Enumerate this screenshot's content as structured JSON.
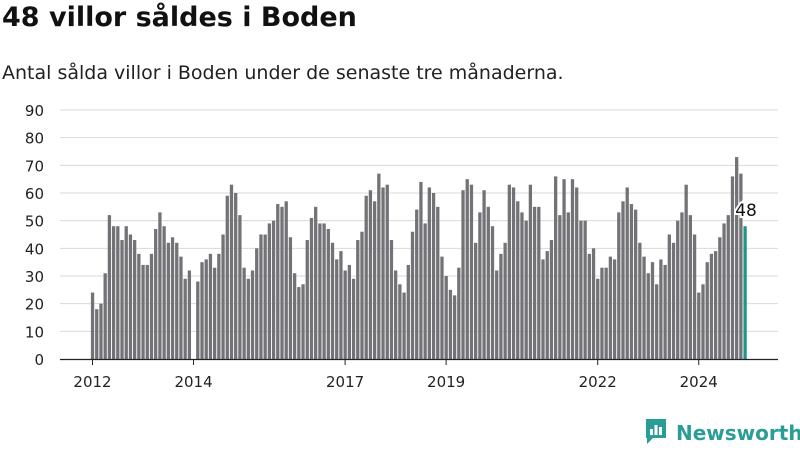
{
  "title": "48 villor såldes i Boden",
  "subtitle": "Antal sålda villor i Boden under de senaste tre månaderna.",
  "brand": {
    "name": "Newsworthy",
    "icon": "newsworthy-logo-icon"
  },
  "colors": {
    "bar": "#737277",
    "highlight": "#1e958d",
    "grid": "#d9d9d9",
    "axis": "#222222",
    "brand": "#2a9d97"
  },
  "chart_data": {
    "type": "bar",
    "xlabel": "",
    "ylabel": "",
    "ylim": [
      0,
      90
    ],
    "yticks": [
      0,
      10,
      20,
      30,
      40,
      50,
      60,
      70,
      80,
      90
    ],
    "grid": true,
    "x_ticks": [
      {
        "label": "2012",
        "index": 0
      },
      {
        "label": "2014",
        "index": 24
      },
      {
        "label": "2017",
        "index": 60
      },
      {
        "label": "2019",
        "index": 84
      },
      {
        "label": "2022",
        "index": 120
      },
      {
        "label": "2024",
        "index": 144
      }
    ],
    "start_label": "2012",
    "highlight_label": "48",
    "values": [
      24,
      18,
      20,
      31,
      52,
      48,
      48,
      43,
      48,
      45,
      43,
      38,
      34,
      34,
      38,
      47,
      53,
      48,
      42,
      44,
      42,
      37,
      29,
      32,
      null,
      28,
      35,
      36,
      38,
      33,
      38,
      45,
      59,
      63,
      60,
      52,
      33,
      29,
      32,
      40,
      45,
      45,
      49,
      50,
      56,
      55,
      57,
      44,
      31,
      26,
      27,
      43,
      51,
      55,
      49,
      49,
      47,
      42,
      36,
      39,
      32,
      34,
      29,
      43,
      46,
      59,
      61,
      57,
      67,
      62,
      63,
      43,
      32,
      27,
      24,
      34,
      46,
      54,
      64,
      49,
      62,
      60,
      55,
      37,
      30,
      25,
      23,
      33,
      61,
      65,
      63,
      42,
      53,
      61,
      55,
      48,
      32,
      38,
      42,
      63,
      62,
      57,
      53,
      50,
      63,
      55,
      55,
      36,
      39,
      43,
      66,
      52,
      65,
      53,
      65,
      62,
      50,
      50,
      38,
      40,
      29,
      33,
      33,
      37,
      36,
      53,
      57,
      62,
      56,
      54,
      42,
      37,
      31,
      35,
      27,
      36,
      34,
      45,
      42,
      50,
      53,
      63,
      52,
      45,
      24,
      27,
      35,
      38,
      39,
      44,
      49,
      52,
      66,
      73,
      67,
      48
    ]
  }
}
